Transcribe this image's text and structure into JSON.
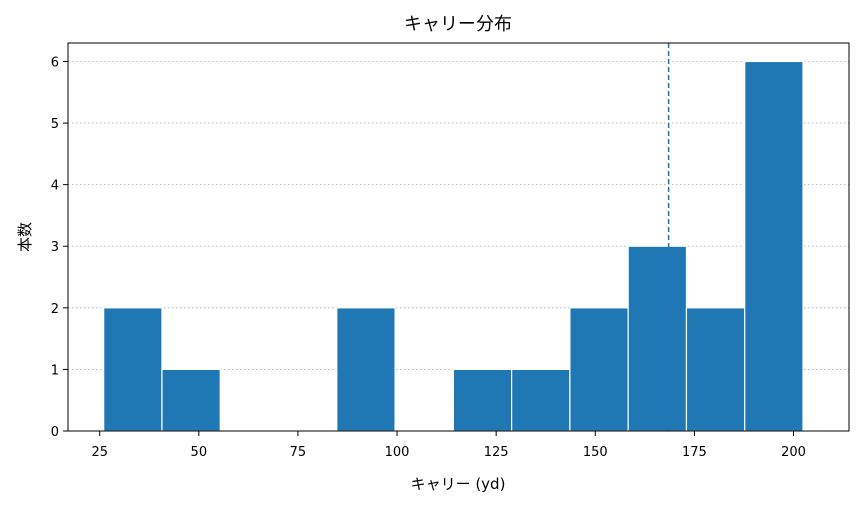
{
  "chart_data": {
    "type": "bar",
    "title": "キャリー分布",
    "xlabel": "キャリー (yd)",
    "ylabel": "本数",
    "bins": [
      {
        "x0": 26.0,
        "x1": 40.7,
        "count": 2
      },
      {
        "x0": 40.7,
        "x1": 55.4,
        "count": 1
      },
      {
        "x0": 55.4,
        "x1": 70.1,
        "count": 0
      },
      {
        "x0": 70.1,
        "x1": 84.8,
        "count": 0
      },
      {
        "x0": 84.8,
        "x1": 99.5,
        "count": 2
      },
      {
        "x0": 99.5,
        "x1": 114.2,
        "count": 0
      },
      {
        "x0": 114.2,
        "x1": 128.9,
        "count": 1
      },
      {
        "x0": 128.9,
        "x1": 143.6,
        "count": 1
      },
      {
        "x0": 143.6,
        "x1": 158.3,
        "count": 2
      },
      {
        "x0": 158.3,
        "x1": 173.0,
        "count": 3
      },
      {
        "x0": 173.0,
        "x1": 187.7,
        "count": 2
      },
      {
        "x0": 187.7,
        "x1": 202.4,
        "count": 6
      }
    ],
    "reference_line": {
      "x": 168.5,
      "style": "dashed"
    },
    "xlim": [
      17,
      214
    ],
    "ylim": [
      0,
      6.3
    ],
    "xticks": [
      25,
      50,
      75,
      100,
      125,
      150,
      175,
      200
    ],
    "yticks": [
      0,
      1,
      2,
      3,
      4,
      5,
      6
    ],
    "grid": {
      "axis": "y",
      "style": "dotted"
    },
    "colors": {
      "bar": "#1f77b4",
      "bar_edge": "#ffffff",
      "reference_line": "#1f77b4",
      "grid": "#b0b0b0"
    }
  }
}
